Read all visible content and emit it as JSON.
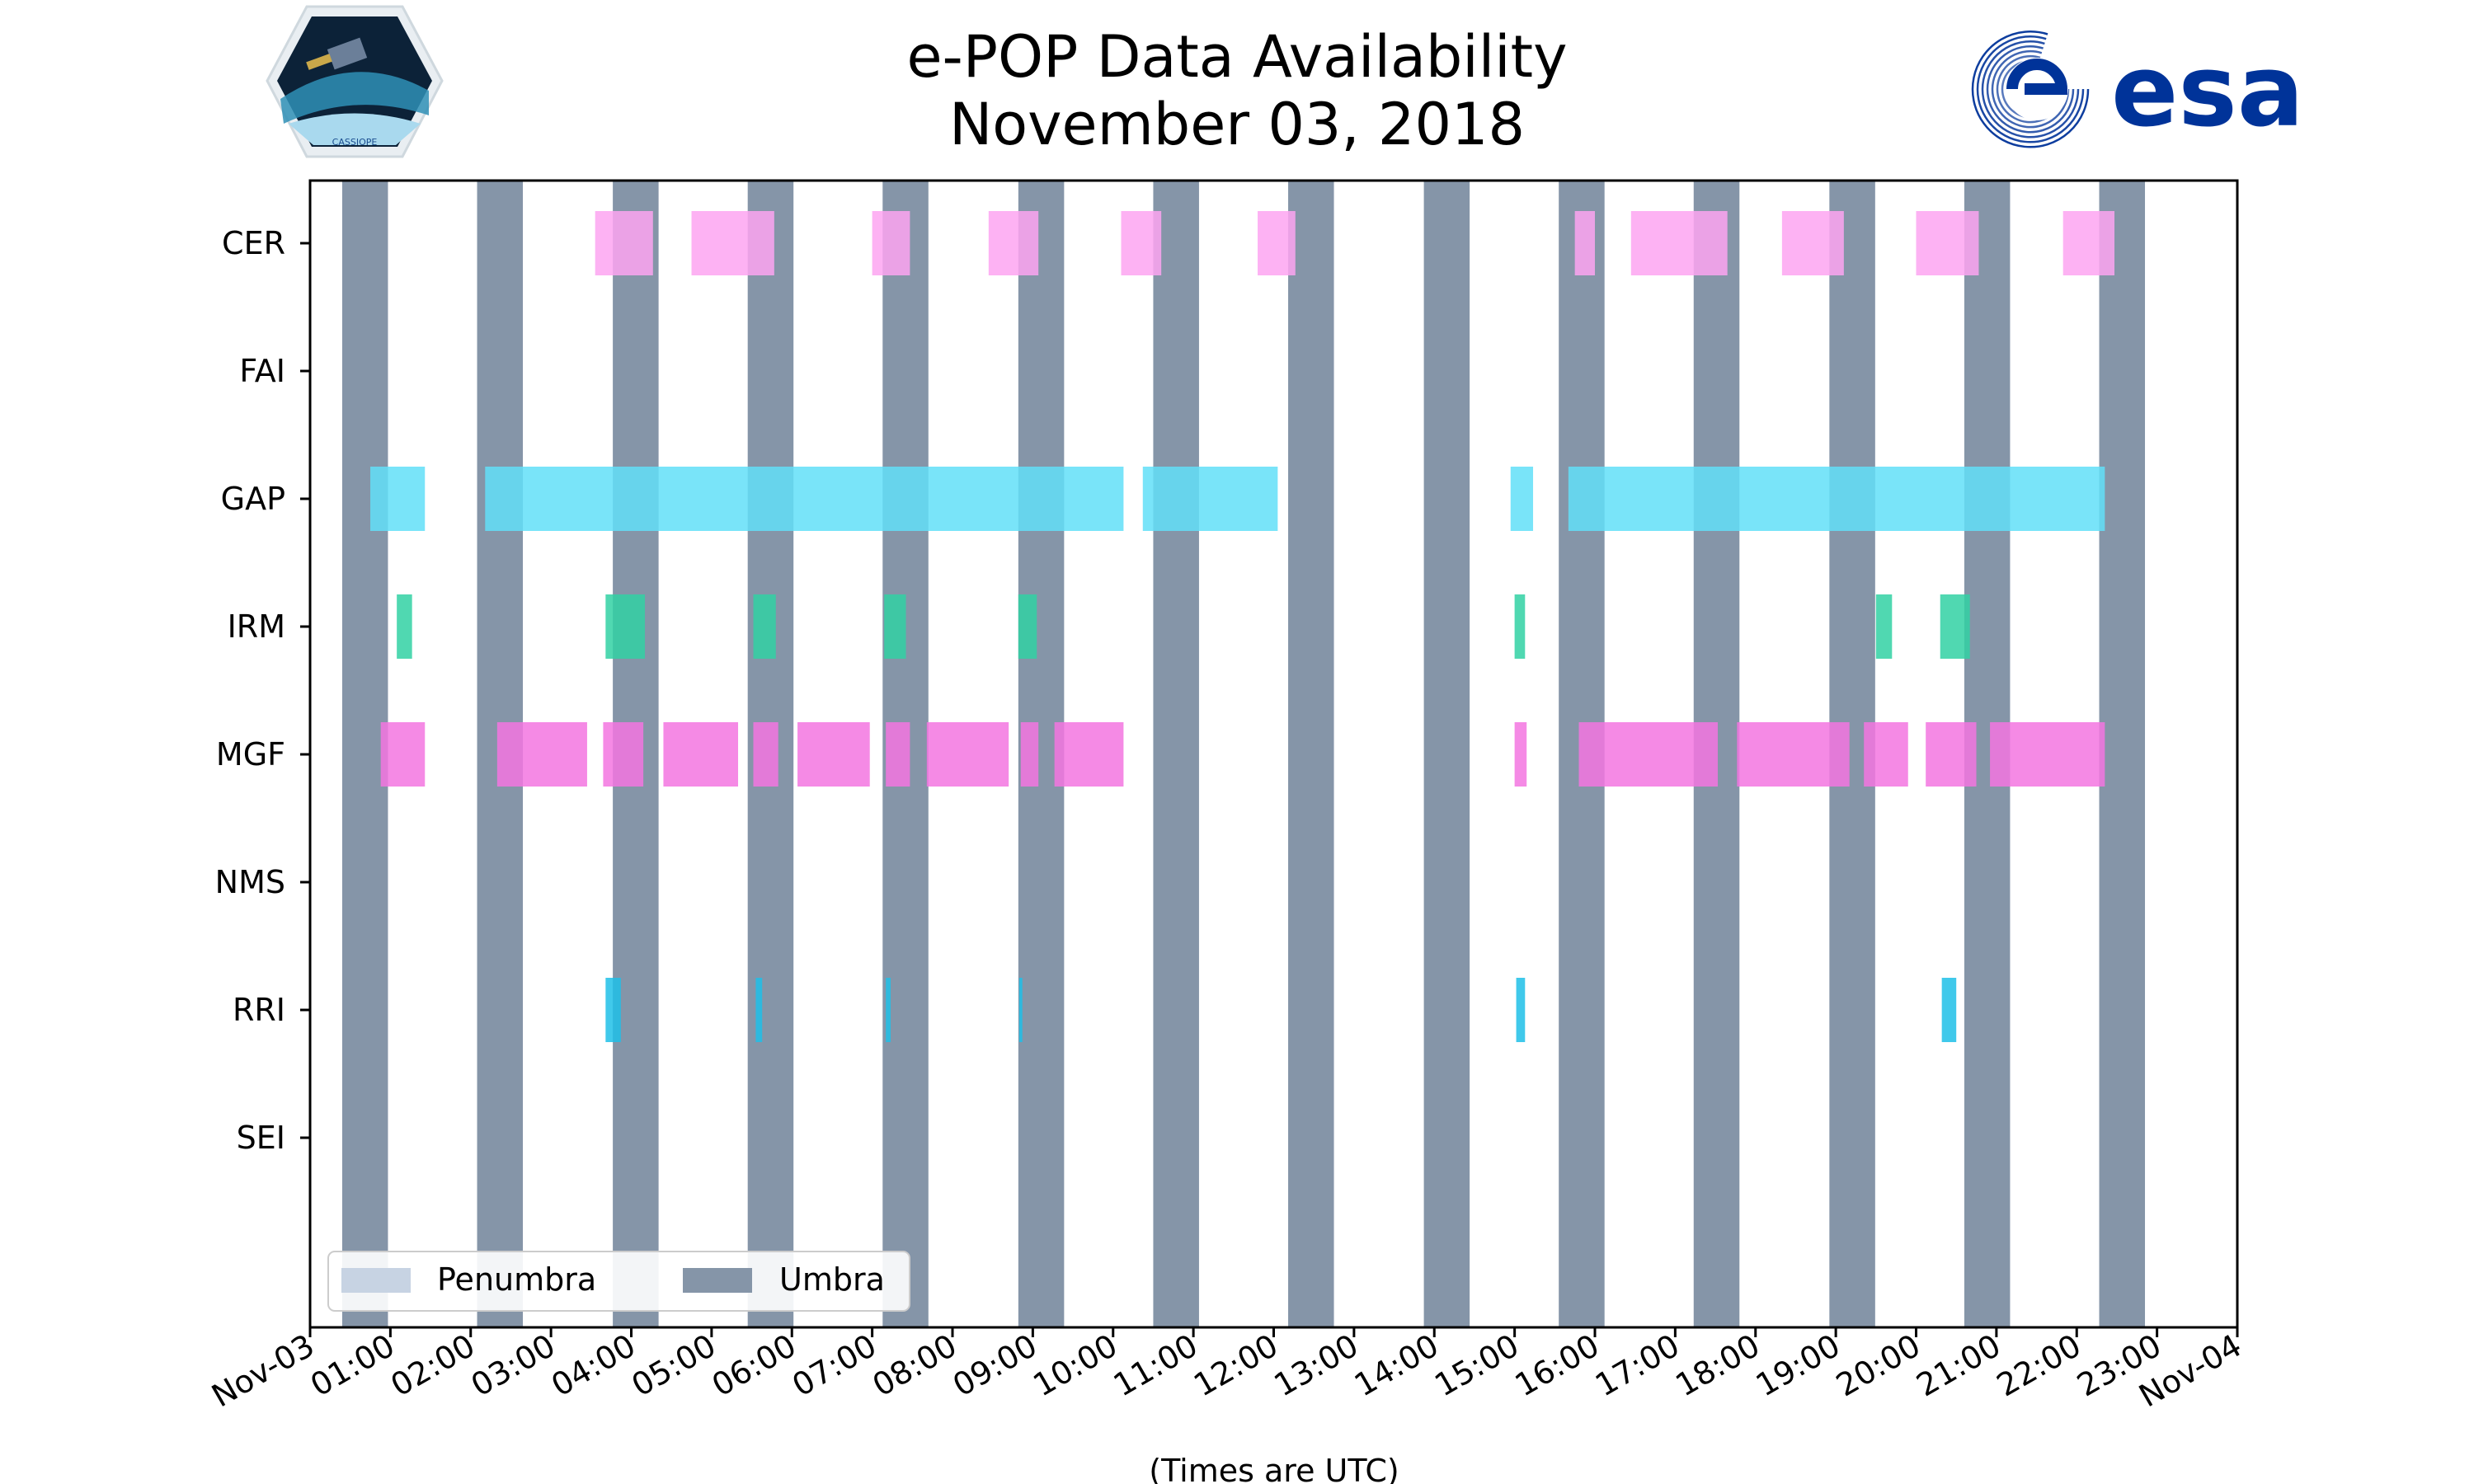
{
  "header": {
    "title_line1": "e-POP Data Availability",
    "title_line2": "November 03, 2018",
    "left_logo_text": "CASSIOPE",
    "right_logo_text": "esa"
  },
  "colors": {
    "umbra": "#8595a8",
    "penumbra": "#c7d3e3",
    "cer": "#fda4f1",
    "gap": "#62dff8",
    "irm": "#31d1a3",
    "mgf": "#f375e1",
    "rri": "#1ec0e8",
    "esa_blue": "#003399"
  },
  "chart_data": {
    "type": "timeline",
    "title": "e-POP Data Availability November 03, 2018",
    "xlabel": "(Times are UTC)",
    "ylabel": "",
    "x_unit": "hours since 2018-11-03 00:00 UTC",
    "xlim": [
      0,
      24
    ],
    "x_ticks": [
      {
        "value": 0,
        "label": "Nov-03"
      },
      {
        "value": 1,
        "label": "01:00"
      },
      {
        "value": 2,
        "label": "02:00"
      },
      {
        "value": 3,
        "label": "03:00"
      },
      {
        "value": 4,
        "label": "04:00"
      },
      {
        "value": 5,
        "label": "05:00"
      },
      {
        "value": 6,
        "label": "06:00"
      },
      {
        "value": 7,
        "label": "07:00"
      },
      {
        "value": 8,
        "label": "08:00"
      },
      {
        "value": 9,
        "label": "09:00"
      },
      {
        "value": 10,
        "label": "10:00"
      },
      {
        "value": 11,
        "label": "11:00"
      },
      {
        "value": 12,
        "label": "12:00"
      },
      {
        "value": 13,
        "label": "13:00"
      },
      {
        "value": 14,
        "label": "14:00"
      },
      {
        "value": 15,
        "label": "15:00"
      },
      {
        "value": 16,
        "label": "16:00"
      },
      {
        "value": 17,
        "label": "17:00"
      },
      {
        "value": 18,
        "label": "18:00"
      },
      {
        "value": 19,
        "label": "19:00"
      },
      {
        "value": 20,
        "label": "20:00"
      },
      {
        "value": 21,
        "label": "21:00"
      },
      {
        "value": 22,
        "label": "22:00"
      },
      {
        "value": 23,
        "label": "23:00"
      },
      {
        "value": 24,
        "label": "Nov-04"
      }
    ],
    "instruments": [
      "CER",
      "FAI",
      "GAP",
      "IRM",
      "MGF",
      "NMS",
      "RRI",
      "SEI"
    ],
    "umbra_intervals": [
      [
        0.4,
        0.97
      ],
      [
        2.08,
        2.65
      ],
      [
        3.77,
        4.34
      ],
      [
        5.45,
        6.02
      ],
      [
        7.13,
        7.7
      ],
      [
        8.82,
        9.39
      ],
      [
        10.5,
        11.07
      ],
      [
        12.18,
        12.75
      ],
      [
        13.87,
        14.44
      ],
      [
        15.55,
        16.12
      ],
      [
        17.23,
        17.8
      ],
      [
        18.92,
        19.49
      ],
      [
        20.6,
        21.17
      ],
      [
        22.28,
        22.85
      ]
    ],
    "series": [
      {
        "name": "CER",
        "color_key": "cer",
        "intervals": [
          [
            3.55,
            4.27
          ],
          [
            4.75,
            5.78
          ],
          [
            7.0,
            7.47
          ],
          [
            8.45,
            9.07
          ],
          [
            10.1,
            10.6
          ],
          [
            11.8,
            12.27
          ],
          [
            15.75,
            16.0
          ],
          [
            16.45,
            17.65
          ],
          [
            18.33,
            19.1
          ],
          [
            20.0,
            20.78
          ],
          [
            21.83,
            22.47
          ]
        ]
      },
      {
        "name": "FAI",
        "color_key": "cer",
        "intervals": []
      },
      {
        "name": "GAP",
        "color_key": "gap",
        "intervals": [
          [
            0.75,
            1.43
          ],
          [
            2.18,
            10.13
          ],
          [
            10.37,
            12.05
          ],
          [
            14.95,
            15.23
          ],
          [
            15.67,
            22.35
          ]
        ]
      },
      {
        "name": "IRM",
        "color_key": "irm",
        "intervals": [
          [
            1.08,
            1.27
          ],
          [
            3.68,
            4.17
          ],
          [
            5.52,
            5.8
          ],
          [
            7.15,
            7.42
          ],
          [
            8.82,
            9.05
          ],
          [
            15.0,
            15.13
          ],
          [
            19.5,
            19.7
          ],
          [
            20.3,
            20.67
          ]
        ]
      },
      {
        "name": "MGF",
        "color_key": "mgf",
        "intervals": [
          [
            0.88,
            1.43
          ],
          [
            2.33,
            3.45
          ],
          [
            3.65,
            4.15
          ],
          [
            4.4,
            5.33
          ],
          [
            5.52,
            5.83
          ],
          [
            6.07,
            6.97
          ],
          [
            7.17,
            7.47
          ],
          [
            7.68,
            8.7
          ],
          [
            8.85,
            9.07
          ],
          [
            9.27,
            10.13
          ],
          [
            15.0,
            15.15
          ],
          [
            15.8,
            17.53
          ],
          [
            17.77,
            19.17
          ],
          [
            19.35,
            19.9
          ],
          [
            20.12,
            20.75
          ],
          [
            20.92,
            22.35
          ]
        ]
      },
      {
        "name": "NMS",
        "color_key": "mgf",
        "intervals": []
      },
      {
        "name": "RRI",
        "color_key": "rri",
        "intervals": [
          [
            3.68,
            3.87
          ],
          [
            5.55,
            5.63
          ],
          [
            7.17,
            7.23
          ],
          [
            8.83,
            8.87
          ],
          [
            15.02,
            15.13
          ],
          [
            20.32,
            20.5
          ]
        ]
      },
      {
        "name": "SEI",
        "color_key": "rri",
        "intervals": []
      }
    ],
    "legend": {
      "position": "lower-left",
      "entries": [
        {
          "label": "Penumbra",
          "color_key": "penumbra"
        },
        {
          "label": "Umbra",
          "color_key": "umbra"
        }
      ]
    },
    "grid": false
  }
}
